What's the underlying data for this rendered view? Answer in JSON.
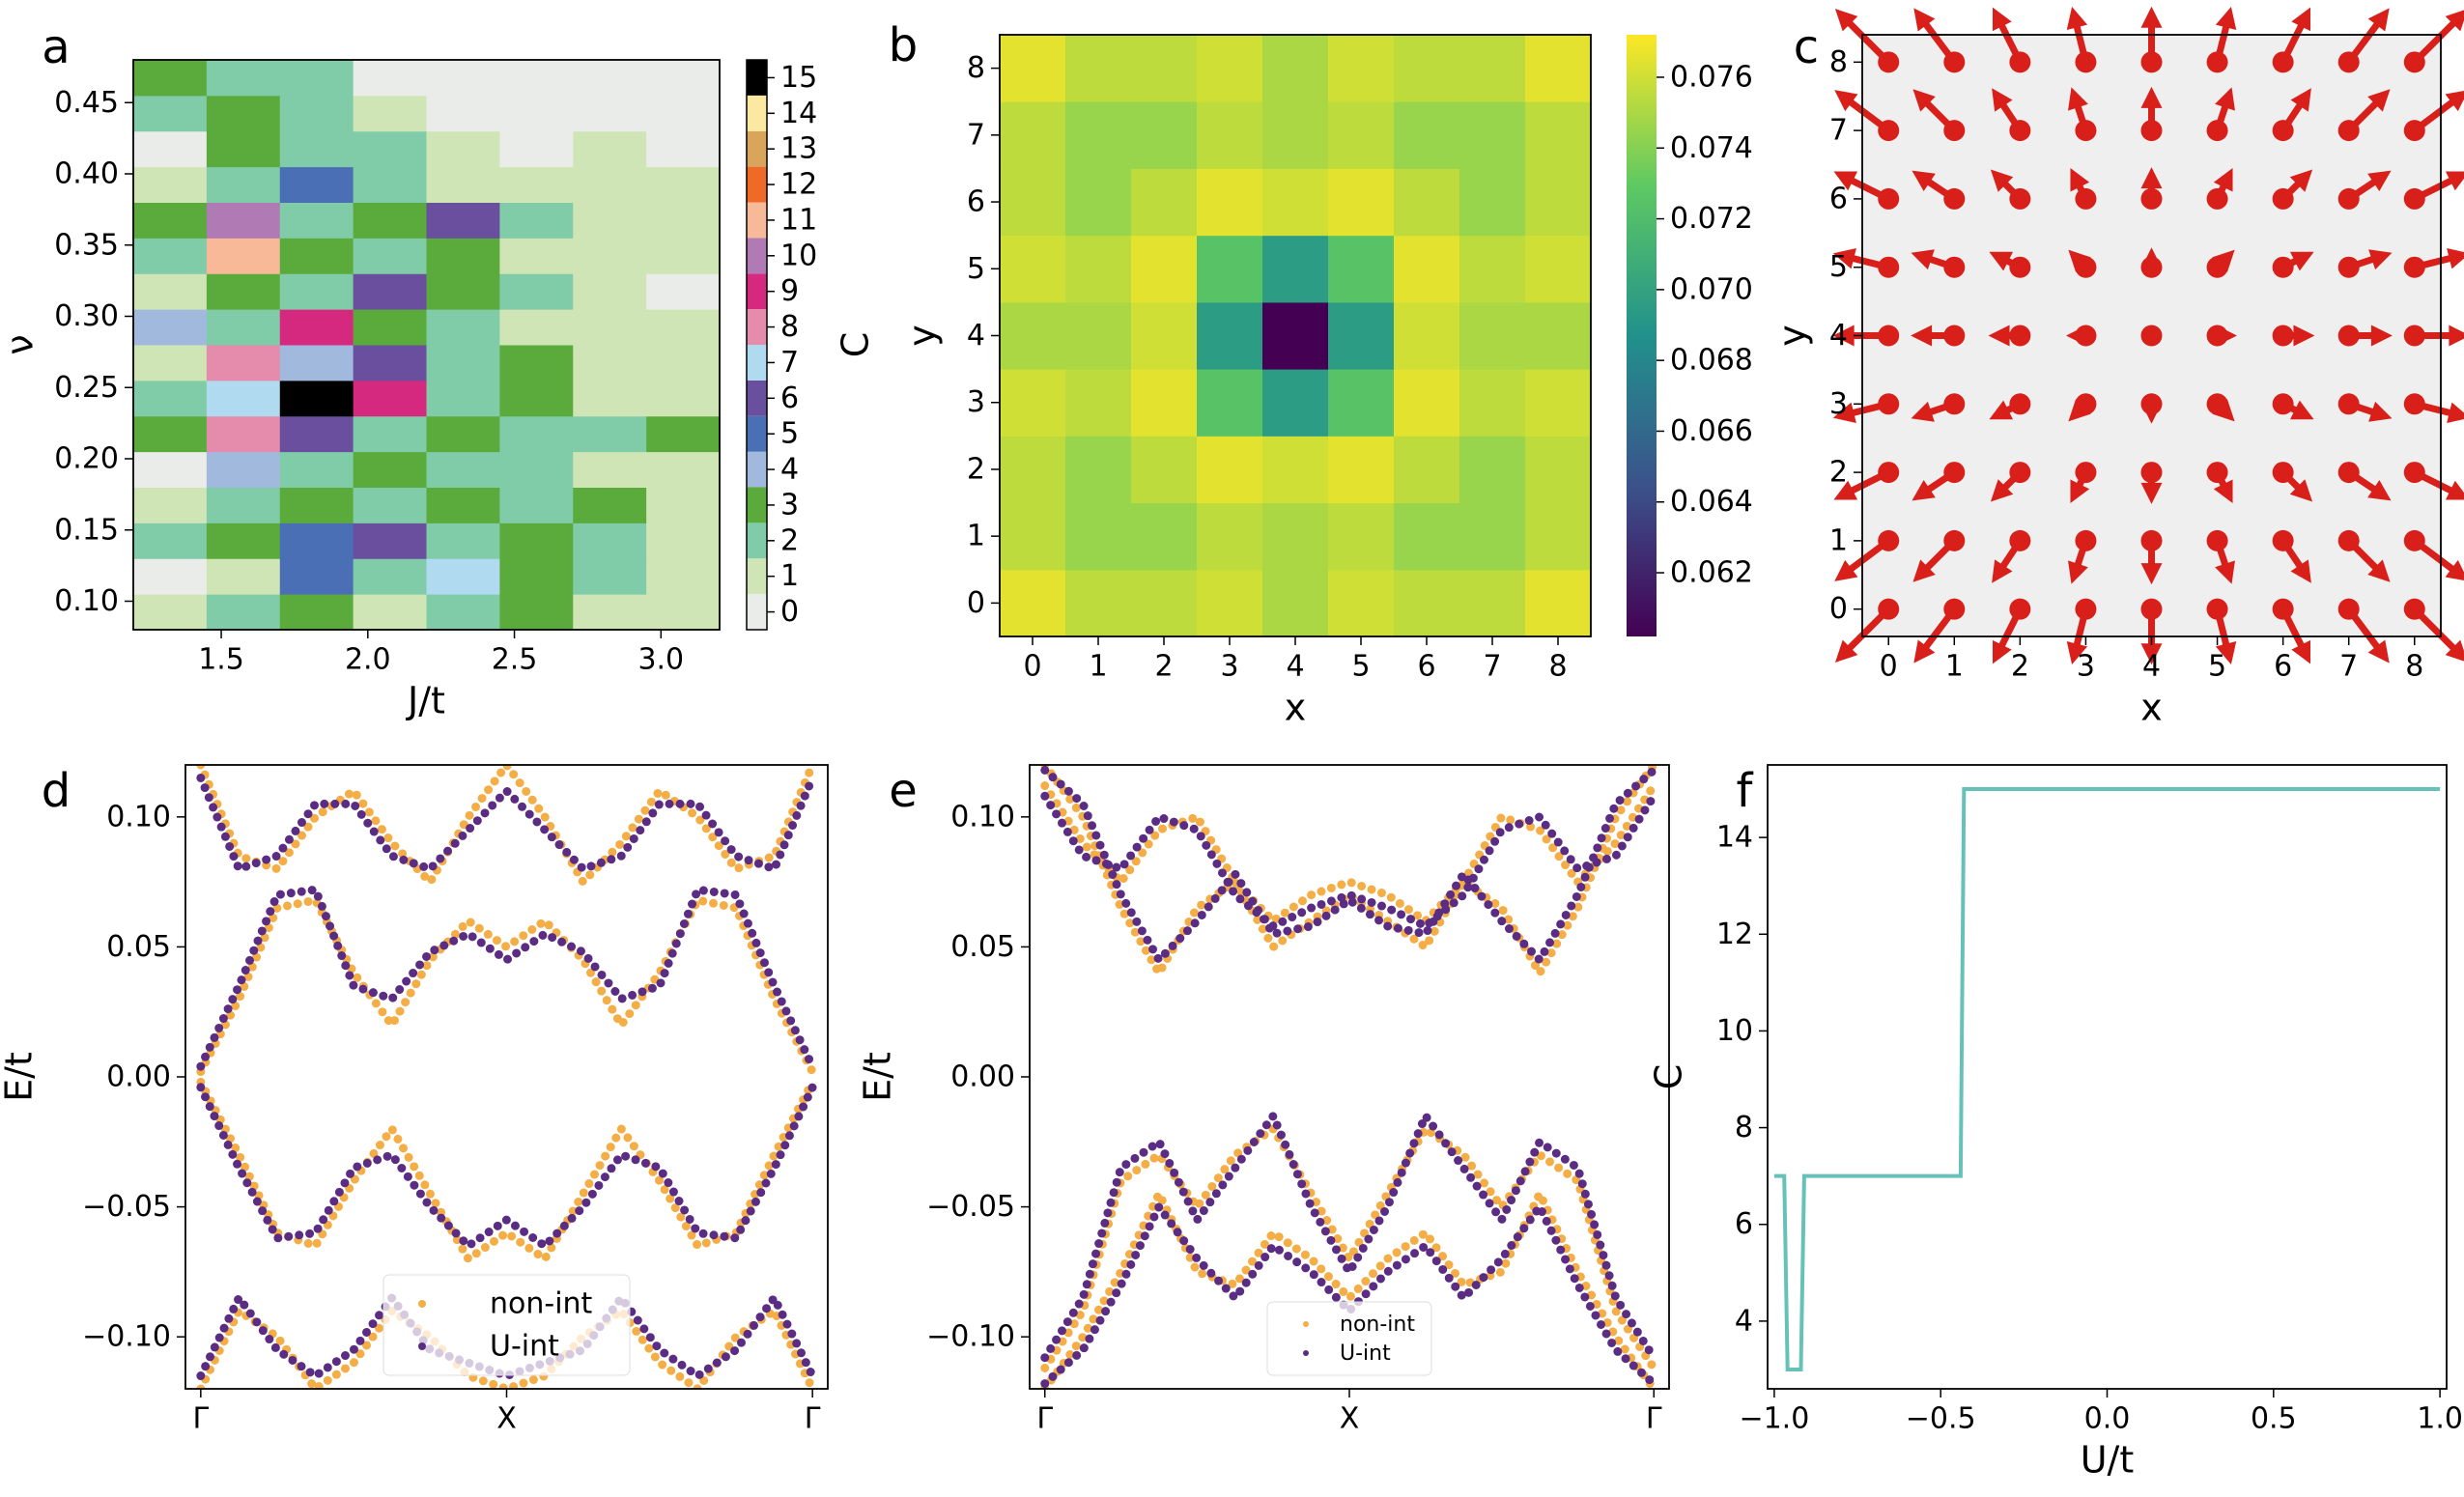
{
  "chart_data": [
    {
      "type": "heatmap",
      "label": "a",
      "xlabel": "J/t",
      "ylabel": "ν",
      "clabel": "C",
      "xlim": [
        1.2,
        3.2
      ],
      "ylim": [
        0.08,
        0.48
      ],
      "xticks": [
        1.5,
        {
          "value": 2,
          "label": "2.0"
        },
        2.5,
        {
          "value": 3,
          "label": "3.0"
        }
      ],
      "yticks": [
        {
          "value": 0.1,
          "label": "0.10"
        },
        0.15,
        {
          "value": 0.2,
          "label": "0.20"
        },
        0.25,
        {
          "value": 0.3,
          "label": "0.30"
        },
        0.35,
        {
          "value": 0.4,
          "label": "0.40"
        },
        0.45
      ],
      "xbins": [
        1.2,
        1.45,
        1.7,
        1.95,
        2.2,
        2.45,
        2.7,
        2.95,
        3.2
      ],
      "ybins": [
        0.08,
        0.105,
        0.13,
        0.155,
        0.18,
        0.205,
        0.23,
        0.255,
        0.28,
        0.305,
        0.33,
        0.355,
        0.38,
        0.405,
        0.43,
        0.455,
        0.48
      ],
      "z": [
        [
          1,
          2,
          3,
          1,
          2,
          3,
          1,
          1
        ],
        [
          0,
          1,
          5,
          2,
          7,
          3,
          2,
          1
        ],
        [
          2,
          3,
          5,
          6,
          2,
          3,
          2,
          1
        ],
        [
          1,
          2,
          3,
          2,
          3,
          2,
          3,
          1
        ],
        [
          0,
          4,
          2,
          3,
          2,
          2,
          1,
          1
        ],
        [
          3,
          8,
          6,
          2,
          3,
          2,
          2,
          3
        ],
        [
          2,
          7,
          15,
          9,
          2,
          3,
          1,
          1
        ],
        [
          1,
          8,
          4,
          6,
          2,
          3,
          1,
          1
        ],
        [
          4,
          2,
          9,
          3,
          2,
          1,
          1,
          1
        ],
        [
          1,
          3,
          2,
          6,
          3,
          2,
          1,
          0
        ],
        [
          2,
          11,
          3,
          2,
          3,
          1,
          1,
          1
        ],
        [
          3,
          10,
          2,
          3,
          6,
          2,
          1,
          1
        ],
        [
          1,
          2,
          5,
          2,
          1,
          1,
          1,
          1
        ],
        [
          0,
          3,
          2,
          2,
          1,
          0,
          1,
          0
        ],
        [
          2,
          3,
          2,
          1,
          0,
          0,
          0,
          0
        ],
        [
          3,
          2,
          2,
          0,
          0,
          0,
          0,
          0
        ]
      ],
      "colorbar_ticks": [
        0,
        1,
        2,
        3,
        4,
        5,
        6,
        7,
        8,
        9,
        10,
        11,
        12,
        13,
        14,
        15
      ],
      "colors": [
        "#e9ece9",
        "#cfe5b6",
        "#80cba8",
        "#5aab3c",
        "#a2b9de",
        "#4a6fb5",
        "#6a4f9f",
        "#b0daf0",
        "#e58bab",
        "#d5297f",
        "#b07ab5",
        "#f7b998",
        "#ee6a26",
        "#d9a55a",
        "#fbe9a2",
        "#000000"
      ]
    },
    {
      "type": "heatmap-continuous",
      "label": "b",
      "xlabel": "x",
      "ylabel": "y",
      "colormap": "viridis",
      "xlim": [
        -0.5,
        8.5
      ],
      "ylim": [
        -0.5,
        8.5
      ],
      "xticks": [
        0,
        1,
        2,
        3,
        4,
        5,
        6,
        7,
        8
      ],
      "yticks": [
        0,
        1,
        2,
        3,
        4,
        5,
        6,
        7,
        8
      ],
      "vlim": [
        0.0602,
        0.0772
      ],
      "colorbar_ticks": [
        0.062,
        0.064,
        0.066,
        0.068,
        {
          "value": 0.07,
          "label": "0.070"
        },
        0.072,
        0.074,
        0.076
      ],
      "z": [
        [
          0.0765,
          0.0755,
          0.0755,
          0.076,
          0.075,
          0.076,
          0.0755,
          0.0755,
          0.0765
        ],
        [
          0.0755,
          0.0745,
          0.0745,
          0.0755,
          0.075,
          0.0755,
          0.0745,
          0.0745,
          0.0755
        ],
        [
          0.0755,
          0.0745,
          0.0755,
          0.0765,
          0.076,
          0.0765,
          0.0755,
          0.0745,
          0.0755
        ],
        [
          0.076,
          0.0755,
          0.0765,
          0.0725,
          0.0695,
          0.0725,
          0.0765,
          0.0755,
          0.076
        ],
        [
          0.075,
          0.075,
          0.076,
          0.0695,
          0.0602,
          0.0695,
          0.076,
          0.075,
          0.075
        ],
        [
          0.076,
          0.0755,
          0.0765,
          0.0725,
          0.0695,
          0.0725,
          0.0765,
          0.0755,
          0.076
        ],
        [
          0.0755,
          0.0745,
          0.0755,
          0.0765,
          0.076,
          0.0765,
          0.0755,
          0.0745,
          0.0755
        ],
        [
          0.0755,
          0.0745,
          0.0745,
          0.0755,
          0.075,
          0.0755,
          0.0745,
          0.0745,
          0.0755
        ],
        [
          0.0765,
          0.0755,
          0.0755,
          0.076,
          0.075,
          0.076,
          0.0755,
          0.0755,
          0.0765
        ]
      ]
    },
    {
      "type": "quiver",
      "label": "c",
      "xlabel": "x",
      "ylabel": "y",
      "color": "#d91f1a",
      "xlim": [
        -0.4,
        8.4
      ],
      "ylim": [
        -0.4,
        8.4
      ],
      "xticks": [
        0,
        1,
        2,
        3,
        4,
        5,
        6,
        7,
        8
      ],
      "yticks": [
        0,
        1,
        2,
        3,
        4,
        5,
        6,
        7,
        8
      ],
      "u": [
        [
          -0.8,
          -0.6,
          -0.4,
          -0.2,
          0,
          0.2,
          0.4,
          0.6,
          0.8
        ],
        [
          -0.8,
          -0.6,
          -0.4,
          -0.2,
          0,
          0.2,
          0.4,
          0.6,
          0.8
        ],
        [
          -0.8,
          -0.6,
          -0.4,
          -0.2,
          0,
          0.2,
          0.4,
          0.6,
          0.8
        ],
        [
          -0.8,
          -0.6,
          -0.4,
          -0.2,
          0,
          0.2,
          0.4,
          0.6,
          0.8
        ],
        [
          -0.8,
          -0.6,
          -0.4,
          -0.2,
          0,
          0.2,
          0.4,
          0.6,
          0.8
        ],
        [
          -0.8,
          -0.6,
          -0.4,
          -0.2,
          0,
          0.2,
          0.4,
          0.6,
          0.8
        ],
        [
          -0.8,
          -0.6,
          -0.4,
          -0.2,
          0,
          0.2,
          0.4,
          0.6,
          0.8
        ],
        [
          -0.8,
          -0.6,
          -0.4,
          -0.2,
          0,
          0.2,
          0.4,
          0.6,
          0.8
        ],
        [
          -0.8,
          -0.6,
          -0.4,
          -0.2,
          0,
          0.2,
          0.4,
          0.6,
          0.8
        ]
      ],
      "v": [
        [
          -0.8,
          -0.8,
          -0.8,
          -0.8,
          -0.8,
          -0.8,
          -0.8,
          -0.8,
          -0.8
        ],
        [
          -0.6,
          -0.6,
          -0.6,
          -0.6,
          -0.6,
          -0.6,
          -0.6,
          -0.6,
          -0.6
        ],
        [
          -0.4,
          -0.4,
          -0.4,
          -0.4,
          -0.4,
          -0.4,
          -0.4,
          -0.4,
          -0.4
        ],
        [
          -0.2,
          -0.2,
          -0.2,
          -0.2,
          -0.2,
          -0.2,
          -0.2,
          -0.2,
          -0.2
        ],
        [
          0,
          0,
          0,
          0,
          0,
          0,
          0,
          0,
          0
        ],
        [
          0.2,
          0.2,
          0.2,
          0.2,
          0.2,
          0.2,
          0.2,
          0.2,
          0.2
        ],
        [
          0.4,
          0.4,
          0.4,
          0.4,
          0.4,
          0.4,
          0.4,
          0.4,
          0.4
        ],
        [
          0.6,
          0.6,
          0.6,
          0.6,
          0.6,
          0.6,
          0.6,
          0.6,
          0.6
        ],
        [
          0.8,
          0.8,
          0.8,
          0.8,
          0.8,
          0.8,
          0.8,
          0.8,
          0.8
        ]
      ]
    },
    {
      "type": "bands",
      "label": "d",
      "ylabel": "E/t",
      "legend": "lower center",
      "xlim": [
        -0.05,
        2.05
      ],
      "ylim": [
        -0.12,
        0.12
      ],
      "xticks": [
        {
          "value": 0,
          "label": "Γ"
        },
        {
          "value": 1,
          "label": "X"
        },
        {
          "value": 2,
          "label": "Γ"
        }
      ],
      "yticks": [
        {
          "value": -0.1,
          "label": "−0.10"
        },
        {
          "value": -0.05,
          "label": "−0.05"
        },
        {
          "value": 0,
          "label": "0.00"
        },
        0.05,
        {
          "value": 0.1,
          "label": "0.10"
        }
      ],
      "x": [
        0,
        0.125,
        0.25,
        0.375,
        0.5,
        0.625,
        0.75,
        0.875,
        1,
        1.125,
        1.25,
        1.375,
        1.5,
        1.625,
        1.75,
        1.875,
        2
      ],
      "series": [
        {
          "name": "non-int",
          "color": "#f5ad45",
          "bands": [
            [
              0.002,
              0.03,
              0.065,
              0.068,
              0.04,
              0.02,
              0.045,
              0.06,
              0.05,
              0.06,
              0.045,
              0.02,
              0.04,
              0.068,
              0.065,
              0.03,
              0.002
            ],
            [
              -0.002,
              -0.03,
              -0.06,
              -0.065,
              -0.04,
              -0.02,
              -0.045,
              -0.07,
              -0.06,
              -0.07,
              -0.045,
              -0.02,
              -0.04,
              -0.065,
              -0.06,
              -0.03,
              -0.002
            ],
            [
              0.12,
              0.085,
              0.08,
              0.1,
              0.11,
              0.09,
              0.075,
              0.1,
              0.12,
              0.1,
              0.075,
              0.09,
              0.11,
              0.1,
              0.08,
              0.085,
              0.12
            ],
            [
              -0.12,
              -0.09,
              -0.1,
              -0.12,
              -0.11,
              -0.09,
              -0.1,
              -0.115,
              -0.12,
              -0.115,
              -0.1,
              -0.09,
              -0.11,
              -0.12,
              -0.1,
              -0.09,
              -0.12
            ]
          ]
        },
        {
          "name": "U-int",
          "color": "#5b2c83",
          "bands": [
            [
              0.004,
              0.035,
              0.07,
              0.072,
              0.035,
              0.03,
              0.048,
              0.055,
              0.045,
              0.055,
              0.048,
              0.03,
              0.035,
              0.072,
              0.07,
              0.035,
              0.004
            ],
            [
              -0.004,
              -0.035,
              -0.062,
              -0.06,
              -0.035,
              -0.03,
              -0.05,
              -0.065,
              -0.055,
              -0.065,
              -0.05,
              -0.03,
              -0.035,
              -0.06,
              -0.062,
              -0.035,
              -0.004
            ],
            [
              0.115,
              0.08,
              0.085,
              0.105,
              0.105,
              0.085,
              0.08,
              0.095,
              0.11,
              0.095,
              0.08,
              0.085,
              0.105,
              0.105,
              0.085,
              0.08,
              0.115
            ],
            [
              -0.115,
              -0.085,
              -0.105,
              -0.115,
              -0.105,
              -0.085,
              -0.105,
              -0.11,
              -0.115,
              -0.11,
              -0.105,
              -0.085,
              -0.105,
              -0.115,
              -0.105,
              -0.085,
              -0.115
            ]
          ]
        }
      ]
    },
    {
      "type": "bands",
      "label": "e",
      "ylabel": "E/t",
      "legend": "lower center",
      "xlim": [
        -0.05,
        2.05
      ],
      "ylim": [
        -0.12,
        0.12
      ],
      "xticks": [
        {
          "value": 0,
          "label": "Γ"
        },
        {
          "value": 1,
          "label": "X"
        },
        {
          "value": 2,
          "label": "Γ"
        }
      ],
      "yticks": [
        {
          "value": -0.1,
          "label": "−0.10"
        },
        {
          "value": -0.05,
          "label": "−0.05"
        },
        {
          "value": 0,
          "label": "0.00"
        },
        0.05,
        {
          "value": 0.1,
          "label": "0.10"
        }
      ],
      "x": [
        0,
        0.125,
        0.25,
        0.375,
        0.5,
        0.625,
        0.75,
        0.875,
        1,
        1.125,
        1.25,
        1.375,
        1.5,
        1.625,
        1.75,
        1.875,
        2
      ],
      "series": [
        {
          "name": "non-int",
          "color": "#f5ad45",
          "bands": [
            [
              0.112,
              0.09,
              0.075,
              0.095,
              0.1,
              0.075,
              0.06,
              0.07,
              0.075,
              0.07,
              0.06,
              0.075,
              0.1,
              0.095,
              0.075,
              0.09,
              0.112
            ],
            [
              -0.112,
              -0.09,
              -0.04,
              -0.03,
              -0.05,
              -0.03,
              -0.02,
              -0.045,
              -0.07,
              -0.045,
              -0.02,
              -0.03,
              -0.05,
              -0.03,
              -0.04,
              -0.09,
              -0.112
            ],
            [
              0.12,
              0.1,
              0.065,
              0.04,
              0.065,
              0.075,
              0.05,
              0.06,
              0.07,
              0.06,
              0.05,
              0.075,
              0.065,
              0.04,
              0.065,
              0.1,
              0.12
            ],
            [
              -0.12,
              -0.1,
              -0.075,
              -0.045,
              -0.075,
              -0.08,
              -0.06,
              -0.07,
              -0.085,
              -0.07,
              -0.06,
              -0.08,
              -0.075,
              -0.045,
              -0.075,
              -0.1,
              -0.12
            ]
          ]
        },
        {
          "name": "U-int",
          "color": "#5b2c83",
          "bands": [
            [
              0.108,
              0.085,
              0.08,
              0.1,
              0.095,
              0.07,
              0.058,
              0.065,
              0.07,
              0.065,
              0.058,
              0.07,
              0.095,
              0.1,
              0.08,
              0.085,
              0.108
            ],
            [
              -0.108,
              -0.085,
              -0.035,
              -0.025,
              -0.055,
              -0.035,
              -0.015,
              -0.05,
              -0.075,
              -0.05,
              -0.015,
              -0.035,
              -0.055,
              -0.025,
              -0.035,
              -0.085,
              -0.108
            ],
            [
              0.118,
              0.105,
              0.07,
              0.045,
              0.06,
              0.078,
              0.055,
              0.058,
              0.068,
              0.058,
              0.055,
              0.078,
              0.06,
              0.045,
              0.07,
              0.105,
              0.118
            ],
            [
              -0.118,
              -0.105,
              -0.08,
              -0.05,
              -0.07,
              -0.085,
              -0.065,
              -0.075,
              -0.09,
              -0.075,
              -0.065,
              -0.085,
              -0.07,
              -0.05,
              -0.08,
              -0.105,
              -0.118
            ]
          ]
        }
      ]
    },
    {
      "type": "line",
      "label": "f",
      "xlabel": "U/t",
      "ylabel": "C",
      "color": "#66c2b9",
      "xlim": [
        -1.02,
        1.02
      ],
      "ylim": [
        2.6,
        15.5
      ],
      "xticks": [
        {
          "value": -1,
          "label": "−1.0"
        },
        {
          "value": -0.5,
          "label": "−0.5"
        },
        {
          "value": 0,
          "label": "0.0"
        },
        0.5,
        {
          "value": 1,
          "label": "1.0"
        }
      ],
      "yticks": [
        4,
        6,
        8,
        10,
        12,
        14
      ],
      "x": [
        -1,
        -0.97,
        -0.96,
        -0.92,
        -0.91,
        -0.44,
        -0.43,
        1
      ],
      "values": [
        7,
        7,
        3,
        3,
        7,
        7,
        15,
        15
      ]
    }
  ]
}
